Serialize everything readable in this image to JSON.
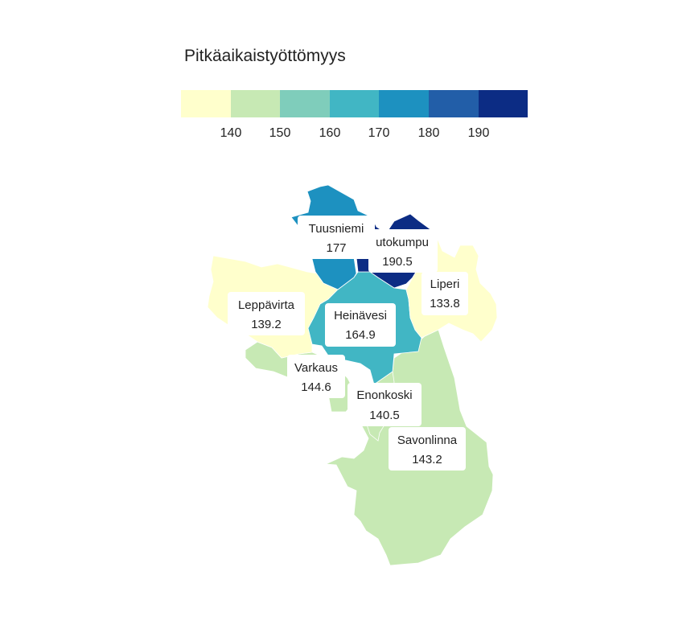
{
  "legend": {
    "title": "Pitkäaikaistyöttömyys",
    "ticks": [
      "140",
      "150",
      "160",
      "170",
      "180",
      "190"
    ],
    "colors": [
      "#ffffcc",
      "#c7e9b4",
      "#7fcdbb",
      "#41b6c4",
      "#1d91c0",
      "#225ea8",
      "#0c2c84"
    ]
  },
  "regions": [
    {
      "name": "Tuusniemi",
      "value": "177",
      "color": "#1d91c0"
    },
    {
      "name": "utokumpu",
      "value": "190.5",
      "color": "#0c2c84"
    },
    {
      "name": "Liperi",
      "value": "133.8",
      "color": "#ffffcc"
    },
    {
      "name": "Leppävirta",
      "value": "139.2",
      "color": "#ffffcc"
    },
    {
      "name": "Heinävesi",
      "value": "164.9",
      "color": "#41b6c4"
    },
    {
      "name": "Varkaus",
      "value": "144.6",
      "color": "#c7e9b4"
    },
    {
      "name": "Enonkoski",
      "value": "140.5",
      "color": "#c7e9b4"
    },
    {
      "name": "Savonlinna",
      "value": "143.2",
      "color": "#c7e9b4"
    }
  ]
}
